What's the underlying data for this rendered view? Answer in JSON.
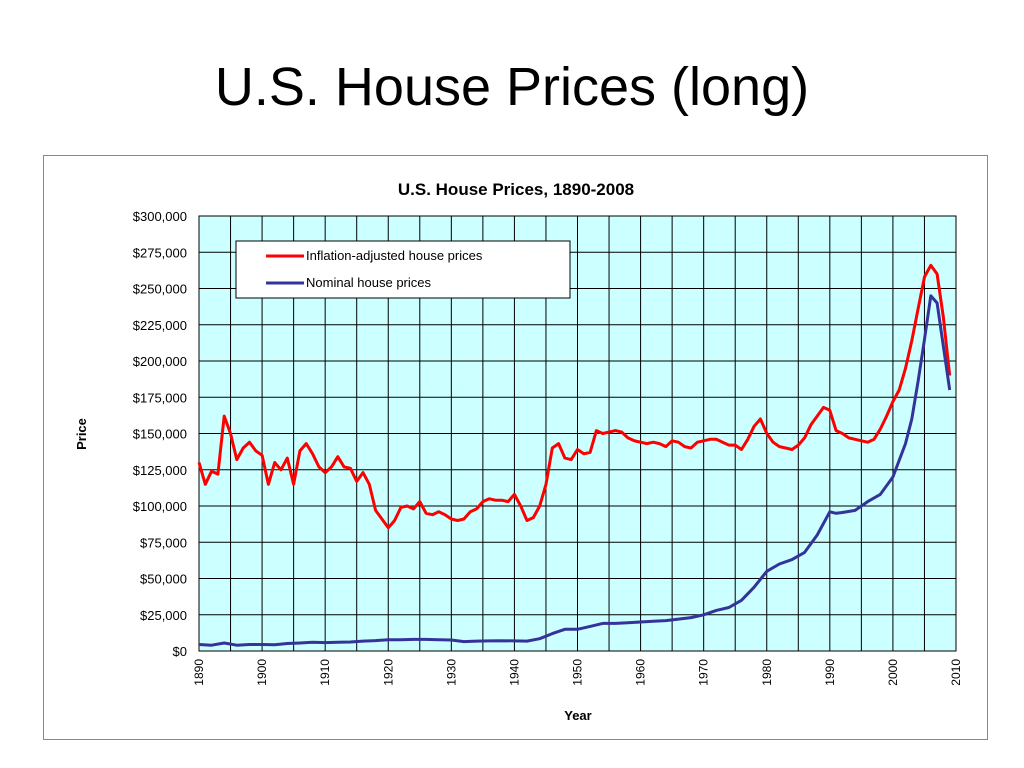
{
  "slide": {
    "title": "U.S. House Prices (long)"
  },
  "chart_data": {
    "type": "line",
    "title": "U.S. House Prices, 1890-2008",
    "xlabel": "Year",
    "ylabel": "Price",
    "xlim": [
      1890,
      2010
    ],
    "ylim": [
      0,
      300000
    ],
    "y_ticks": [
      "$0",
      "$25,000",
      "$50,000",
      "$75,000",
      "$100,000",
      "$125,000",
      "$150,000",
      "$175,000",
      "$200,000",
      "$225,000",
      "$250,000",
      "$275,000",
      "$300,000"
    ],
    "x_ticks": [
      "1890",
      "1900",
      "1910",
      "1920",
      "1930",
      "1940",
      "1950",
      "1960",
      "1970",
      "1980",
      "1990",
      "2000",
      "2010"
    ],
    "grid": true,
    "plot_background": "#ccffff",
    "legend_position": "top-left",
    "series": [
      {
        "name": "Inflation-adjusted house prices",
        "color": "#ff0000",
        "points": [
          [
            1890,
            130000
          ],
          [
            1891,
            115000
          ],
          [
            1892,
            124000
          ],
          [
            1893,
            122000
          ],
          [
            1894,
            162000
          ],
          [
            1895,
            150000
          ],
          [
            1896,
            132000
          ],
          [
            1897,
            140000
          ],
          [
            1898,
            144000
          ],
          [
            1899,
            138000
          ],
          [
            1900,
            135000
          ],
          [
            1901,
            115000
          ],
          [
            1902,
            130000
          ],
          [
            1903,
            125000
          ],
          [
            1904,
            133000
          ],
          [
            1905,
            115000
          ],
          [
            1906,
            138000
          ],
          [
            1907,
            143000
          ],
          [
            1908,
            136000
          ],
          [
            1909,
            127000
          ],
          [
            1910,
            123000
          ],
          [
            1911,
            127000
          ],
          [
            1912,
            134000
          ],
          [
            1913,
            127000
          ],
          [
            1914,
            126000
          ],
          [
            1915,
            117000
          ],
          [
            1916,
            123000
          ],
          [
            1917,
            115000
          ],
          [
            1918,
            97000
          ],
          [
            1919,
            91000
          ],
          [
            1920,
            85000
          ],
          [
            1921,
            90000
          ],
          [
            1922,
            99000
          ],
          [
            1923,
            100000
          ],
          [
            1924,
            98000
          ],
          [
            1925,
            103000
          ],
          [
            1926,
            95000
          ],
          [
            1927,
            94000
          ],
          [
            1928,
            96000
          ],
          [
            1929,
            94000
          ],
          [
            1930,
            91000
          ],
          [
            1931,
            90000
          ],
          [
            1932,
            91000
          ],
          [
            1933,
            96000
          ],
          [
            1934,
            98000
          ],
          [
            1935,
            103000
          ],
          [
            1936,
            105000
          ],
          [
            1937,
            104000
          ],
          [
            1938,
            104000
          ],
          [
            1939,
            103000
          ],
          [
            1940,
            108000
          ],
          [
            1941,
            100000
          ],
          [
            1942,
            90000
          ],
          [
            1943,
            92000
          ],
          [
            1944,
            100000
          ],
          [
            1945,
            115000
          ],
          [
            1946,
            140000
          ],
          [
            1947,
            143000
          ],
          [
            1948,
            133000
          ],
          [
            1949,
            132000
          ],
          [
            1950,
            139000
          ],
          [
            1951,
            136000
          ],
          [
            1952,
            137000
          ],
          [
            1953,
            152000
          ],
          [
            1954,
            150000
          ],
          [
            1955,
            151000
          ],
          [
            1956,
            152000
          ],
          [
            1957,
            151000
          ],
          [
            1958,
            147000
          ],
          [
            1959,
            145000
          ],
          [
            1960,
            144000
          ],
          [
            1961,
            143000
          ],
          [
            1962,
            144000
          ],
          [
            1963,
            143000
          ],
          [
            1964,
            141000
          ],
          [
            1965,
            145000
          ],
          [
            1966,
            144000
          ],
          [
            1967,
            141000
          ],
          [
            1968,
            140000
          ],
          [
            1969,
            144000
          ],
          [
            1970,
            145000
          ],
          [
            1971,
            146000
          ],
          [
            1972,
            146000
          ],
          [
            1973,
            144000
          ],
          [
            1974,
            142000
          ],
          [
            1975,
            142000
          ],
          [
            1976,
            139000
          ],
          [
            1977,
            146000
          ],
          [
            1978,
            155000
          ],
          [
            1979,
            160000
          ],
          [
            1980,
            150000
          ],
          [
            1981,
            144000
          ],
          [
            1982,
            141000
          ],
          [
            1983,
            140000
          ],
          [
            1984,
            139000
          ],
          [
            1985,
            142000
          ],
          [
            1986,
            147000
          ],
          [
            1987,
            156000
          ],
          [
            1988,
            162000
          ],
          [
            1989,
            168000
          ],
          [
            1990,
            166000
          ],
          [
            1991,
            152000
          ],
          [
            1992,
            150000
          ],
          [
            1993,
            147000
          ],
          [
            1994,
            146000
          ],
          [
            1995,
            145000
          ],
          [
            1996,
            144000
          ],
          [
            1997,
            146000
          ],
          [
            1998,
            153000
          ],
          [
            1999,
            162000
          ],
          [
            2000,
            172000
          ],
          [
            2001,
            180000
          ],
          [
            2002,
            195000
          ],
          [
            2003,
            214000
          ],
          [
            2004,
            236000
          ],
          [
            2005,
            258000
          ],
          [
            2006,
            266000
          ],
          [
            2007,
            260000
          ],
          [
            2008,
            230000
          ],
          [
            2009,
            190000
          ]
        ]
      },
      {
        "name": "Nominal house prices",
        "color": "#333399",
        "points": [
          [
            1890,
            4500
          ],
          [
            1892,
            4000
          ],
          [
            1894,
            5500
          ],
          [
            1896,
            4000
          ],
          [
            1898,
            4500
          ],
          [
            1900,
            4500
          ],
          [
            1902,
            4300
          ],
          [
            1904,
            5200
          ],
          [
            1906,
            5500
          ],
          [
            1908,
            6000
          ],
          [
            1910,
            5800
          ],
          [
            1912,
            6000
          ],
          [
            1914,
            6200
          ],
          [
            1916,
            6800
          ],
          [
            1918,
            7200
          ],
          [
            1920,
            7800
          ],
          [
            1922,
            7800
          ],
          [
            1924,
            8000
          ],
          [
            1926,
            8000
          ],
          [
            1928,
            7800
          ],
          [
            1930,
            7600
          ],
          [
            1932,
            6500
          ],
          [
            1934,
            6800
          ],
          [
            1936,
            7000
          ],
          [
            1938,
            7100
          ],
          [
            1940,
            7000
          ],
          [
            1942,
            6800
          ],
          [
            1944,
            8500
          ],
          [
            1946,
            12000
          ],
          [
            1948,
            15000
          ],
          [
            1950,
            15000
          ],
          [
            1952,
            17000
          ],
          [
            1954,
            19000
          ],
          [
            1956,
            19000
          ],
          [
            1958,
            19500
          ],
          [
            1960,
            20000
          ],
          [
            1962,
            20500
          ],
          [
            1964,
            21000
          ],
          [
            1966,
            22000
          ],
          [
            1968,
            23000
          ],
          [
            1970,
            25000
          ],
          [
            1972,
            28000
          ],
          [
            1974,
            30000
          ],
          [
            1976,
            35000
          ],
          [
            1978,
            44000
          ],
          [
            1980,
            55000
          ],
          [
            1982,
            60000
          ],
          [
            1984,
            63000
          ],
          [
            1986,
            68000
          ],
          [
            1988,
            80000
          ],
          [
            1990,
            96000
          ],
          [
            1991,
            95000
          ],
          [
            1992,
            95500
          ],
          [
            1994,
            97000
          ],
          [
            1996,
            103000
          ],
          [
            1998,
            108000
          ],
          [
            2000,
            120000
          ],
          [
            2002,
            143000
          ],
          [
            2003,
            160000
          ],
          [
            2004,
            186000
          ],
          [
            2005,
            215000
          ],
          [
            2006,
            245000
          ],
          [
            2007,
            240000
          ],
          [
            2008,
            210000
          ],
          [
            2009,
            180000
          ]
        ]
      }
    ]
  }
}
